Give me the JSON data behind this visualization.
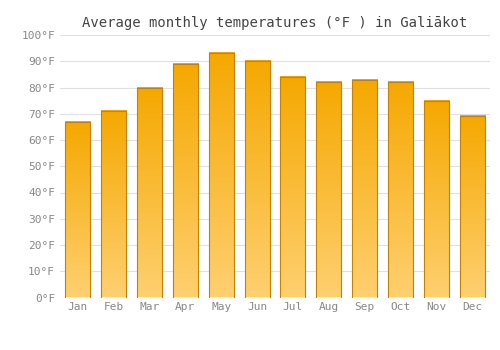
{
  "title": "Average monthly temperatures (°F ) in Galiākot",
  "months": [
    "Jan",
    "Feb",
    "Mar",
    "Apr",
    "May",
    "Jun",
    "Jul",
    "Aug",
    "Sep",
    "Oct",
    "Nov",
    "Dec"
  ],
  "values": [
    67,
    71,
    80,
    89,
    93,
    90,
    84,
    82,
    83,
    82,
    75,
    69
  ],
  "bar_color_top": "#F5A800",
  "bar_color_bottom": "#FFD070",
  "bar_edge_color": "#C88000",
  "background_color": "#FFFFFF",
  "grid_color": "#E0E0E0",
  "ylim": [
    0,
    100
  ],
  "yticks": [
    0,
    10,
    20,
    30,
    40,
    50,
    60,
    70,
    80,
    90,
    100
  ],
  "ytick_labels": [
    "0°F",
    "10°F",
    "20°F",
    "30°F",
    "40°F",
    "50°F",
    "60°F",
    "70°F",
    "80°F",
    "90°F",
    "100°F"
  ],
  "title_fontsize": 10,
  "tick_fontsize": 8,
  "tick_color": "#888888",
  "font_family": "monospace",
  "bar_width": 0.7
}
